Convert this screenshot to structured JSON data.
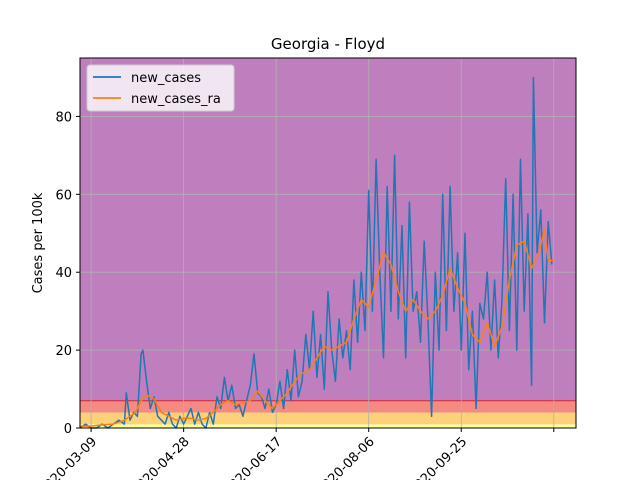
{
  "chart_data": {
    "type": "line",
    "title": "Georgia - Floyd",
    "xlabel": "",
    "ylabel": "Cases per 100k",
    "ylim": [
      0,
      95
    ],
    "xlim": [
      "2020-03-03",
      "2020-11-26"
    ],
    "x_ticks": [
      "2020-03-09",
      "2020-04-28",
      "2020-06-17",
      "2020-08-06",
      "2020-09-25",
      "2020-11-14"
    ],
    "x_tick_labels": [
      "2020-03-09",
      "2020-04-28",
      "2020-06-17",
      "2020-08-06",
      "2020-09-25",
      ""
    ],
    "y_ticks": [
      0,
      20,
      40,
      60,
      80
    ],
    "grid": true,
    "legend_position": "top-left",
    "background_color": "#bf7fbf",
    "threshold_bands": [
      {
        "from": 0,
        "to": 1,
        "color": "#ffff99"
      },
      {
        "from": 1,
        "to": 4,
        "color": "#fdd17a"
      },
      {
        "from": 4,
        "to": 7,
        "color": "#f48a82"
      }
    ],
    "series": [
      {
        "name": "new_cases",
        "color": "#1f77b4",
        "points": [
          [
            "2020-03-03",
            0
          ],
          [
            "2020-03-06",
            1
          ],
          [
            "2020-03-09",
            0
          ],
          [
            "2020-03-12",
            0
          ],
          [
            "2020-03-15",
            1
          ],
          [
            "2020-03-18",
            0
          ],
          [
            "2020-03-21",
            1
          ],
          [
            "2020-03-24",
            2
          ],
          [
            "2020-03-27",
            1
          ],
          [
            "2020-03-28",
            9
          ],
          [
            "2020-03-30",
            2
          ],
          [
            "2020-04-01",
            4
          ],
          [
            "2020-04-03",
            3
          ],
          [
            "2020-04-05",
            19
          ],
          [
            "2020-04-06",
            20
          ],
          [
            "2020-04-08",
            12
          ],
          [
            "2020-04-10",
            5
          ],
          [
            "2020-04-12",
            8
          ],
          [
            "2020-04-14",
            3
          ],
          [
            "2020-04-16",
            2
          ],
          [
            "2020-04-18",
            1
          ],
          [
            "2020-04-20",
            4
          ],
          [
            "2020-04-22",
            1
          ],
          [
            "2020-04-24",
            0
          ],
          [
            "2020-04-26",
            3
          ],
          [
            "2020-04-28",
            1
          ],
          [
            "2020-04-30",
            3
          ],
          [
            "2020-05-02",
            5
          ],
          [
            "2020-05-04",
            1
          ],
          [
            "2020-05-06",
            4
          ],
          [
            "2020-05-08",
            1
          ],
          [
            "2020-05-10",
            0
          ],
          [
            "2020-05-12",
            4
          ],
          [
            "2020-05-14",
            1
          ],
          [
            "2020-05-16",
            8
          ],
          [
            "2020-05-18",
            5
          ],
          [
            "2020-05-20",
            13
          ],
          [
            "2020-05-22",
            7
          ],
          [
            "2020-05-24",
            11
          ],
          [
            "2020-05-26",
            5
          ],
          [
            "2020-05-28",
            6
          ],
          [
            "2020-05-30",
            3
          ],
          [
            "2020-06-01",
            7
          ],
          [
            "2020-06-03",
            11
          ],
          [
            "2020-06-05",
            19
          ],
          [
            "2020-06-07",
            9
          ],
          [
            "2020-06-09",
            8
          ],
          [
            "2020-06-11",
            5
          ],
          [
            "2020-06-13",
            10
          ],
          [
            "2020-06-15",
            4
          ],
          [
            "2020-06-17",
            6
          ],
          [
            "2020-06-19",
            12
          ],
          [
            "2020-06-21",
            5
          ],
          [
            "2020-06-23",
            15
          ],
          [
            "2020-06-25",
            7
          ],
          [
            "2020-06-27",
            20
          ],
          [
            "2020-06-29",
            8
          ],
          [
            "2020-07-01",
            12
          ],
          [
            "2020-07-03",
            24
          ],
          [
            "2020-07-05",
            15
          ],
          [
            "2020-07-07",
            30
          ],
          [
            "2020-07-09",
            13
          ],
          [
            "2020-07-11",
            24
          ],
          [
            "2020-07-13",
            10
          ],
          [
            "2020-07-15",
            35
          ],
          [
            "2020-07-17",
            20
          ],
          [
            "2020-07-19",
            12
          ],
          [
            "2020-07-21",
            28
          ],
          [
            "2020-07-23",
            18
          ],
          [
            "2020-07-25",
            25
          ],
          [
            "2020-07-27",
            15
          ],
          [
            "2020-07-29",
            38
          ],
          [
            "2020-07-31",
            22
          ],
          [
            "2020-08-02",
            40
          ],
          [
            "2020-08-04",
            25
          ],
          [
            "2020-08-06",
            61
          ],
          [
            "2020-08-08",
            30
          ],
          [
            "2020-08-10",
            69
          ],
          [
            "2020-08-12",
            40
          ],
          [
            "2020-08-14",
            18
          ],
          [
            "2020-08-16",
            62
          ],
          [
            "2020-08-18",
            30
          ],
          [
            "2020-08-20",
            70
          ],
          [
            "2020-08-22",
            28
          ],
          [
            "2020-08-24",
            52
          ],
          [
            "2020-08-26",
            18
          ],
          [
            "2020-08-28",
            58
          ],
          [
            "2020-08-30",
            30
          ],
          [
            "2020-09-01",
            35
          ],
          [
            "2020-09-03",
            22
          ],
          [
            "2020-09-05",
            48
          ],
          [
            "2020-09-07",
            28
          ],
          [
            "2020-09-09",
            3
          ],
          [
            "2020-09-11",
            40
          ],
          [
            "2020-09-13",
            20
          ],
          [
            "2020-09-15",
            60
          ],
          [
            "2020-09-17",
            25
          ],
          [
            "2020-09-19",
            62
          ],
          [
            "2020-09-21",
            30
          ],
          [
            "2020-09-23",
            45
          ],
          [
            "2020-09-25",
            20
          ],
          [
            "2020-09-27",
            50
          ],
          [
            "2020-09-29",
            15
          ],
          [
            "2020-10-01",
            30
          ],
          [
            "2020-10-03",
            5
          ],
          [
            "2020-10-05",
            32
          ],
          [
            "2020-10-07",
            28
          ],
          [
            "2020-10-09",
            40
          ],
          [
            "2020-10-11",
            20
          ],
          [
            "2020-10-13",
            38
          ],
          [
            "2020-10-15",
            18
          ],
          [
            "2020-10-17",
            33
          ],
          [
            "2020-10-19",
            64
          ],
          [
            "2020-10-21",
            25
          ],
          [
            "2020-10-23",
            60
          ],
          [
            "2020-10-25",
            20
          ],
          [
            "2020-10-27",
            69
          ],
          [
            "2020-10-29",
            30
          ],
          [
            "2020-10-31",
            55
          ],
          [
            "2020-11-02",
            11
          ],
          [
            "2020-11-03",
            90
          ],
          [
            "2020-11-05",
            45
          ],
          [
            "2020-11-07",
            56
          ],
          [
            "2020-11-09",
            27
          ],
          [
            "2020-11-11",
            53
          ],
          [
            "2020-11-13",
            42
          ]
        ]
      },
      {
        "name": "new_cases_ra",
        "color": "#ff7f0e",
        "points": [
          [
            "2020-03-03",
            0.5
          ],
          [
            "2020-03-09",
            0.5
          ],
          [
            "2020-03-15",
            0.8
          ],
          [
            "2020-03-21",
            1
          ],
          [
            "2020-03-27",
            2
          ],
          [
            "2020-04-02",
            4
          ],
          [
            "2020-04-05",
            7
          ],
          [
            "2020-04-08",
            8.5
          ],
          [
            "2020-04-12",
            7.5
          ],
          [
            "2020-04-16",
            4
          ],
          [
            "2020-04-20",
            3
          ],
          [
            "2020-04-24",
            2
          ],
          [
            "2020-04-28",
            2.5
          ],
          [
            "2020-05-02",
            2.5
          ],
          [
            "2020-05-06",
            2
          ],
          [
            "2020-05-10",
            2.5
          ],
          [
            "2020-05-14",
            4
          ],
          [
            "2020-05-18",
            6
          ],
          [
            "2020-05-22",
            7
          ],
          [
            "2020-05-26",
            6
          ],
          [
            "2020-05-30",
            6.5
          ],
          [
            "2020-06-03",
            7
          ],
          [
            "2020-06-07",
            9.5
          ],
          [
            "2020-06-11",
            7
          ],
          [
            "2020-06-15",
            5
          ],
          [
            "2020-06-19",
            7
          ],
          [
            "2020-06-23",
            9
          ],
          [
            "2020-06-27",
            12
          ],
          [
            "2020-07-01",
            14
          ],
          [
            "2020-07-05",
            15
          ],
          [
            "2020-07-09",
            18
          ],
          [
            "2020-07-13",
            21
          ],
          [
            "2020-07-17",
            20
          ],
          [
            "2020-07-21",
            21
          ],
          [
            "2020-07-25",
            22
          ],
          [
            "2020-07-29",
            28
          ],
          [
            "2020-08-02",
            33
          ],
          [
            "2020-08-06",
            31
          ],
          [
            "2020-08-10",
            38
          ],
          [
            "2020-08-14",
            45
          ],
          [
            "2020-08-18",
            42
          ],
          [
            "2020-08-22",
            35
          ],
          [
            "2020-08-26",
            30
          ],
          [
            "2020-08-30",
            33
          ],
          [
            "2020-09-03",
            30
          ],
          [
            "2020-09-07",
            28
          ],
          [
            "2020-09-11",
            30
          ],
          [
            "2020-09-15",
            34
          ],
          [
            "2020-09-19",
            41
          ],
          [
            "2020-09-23",
            36
          ],
          [
            "2020-09-27",
            32
          ],
          [
            "2020-10-01",
            24
          ],
          [
            "2020-10-05",
            22
          ],
          [
            "2020-10-09",
            27
          ],
          [
            "2020-10-13",
            21
          ],
          [
            "2020-10-17",
            26
          ],
          [
            "2020-10-21",
            38
          ],
          [
            "2020-10-25",
            47
          ],
          [
            "2020-10-29",
            48
          ],
          [
            "2020-11-02",
            41
          ],
          [
            "2020-11-06",
            45
          ],
          [
            "2020-11-09",
            51
          ],
          [
            "2020-11-11",
            43
          ],
          [
            "2020-11-14",
            43
          ]
        ]
      }
    ]
  }
}
